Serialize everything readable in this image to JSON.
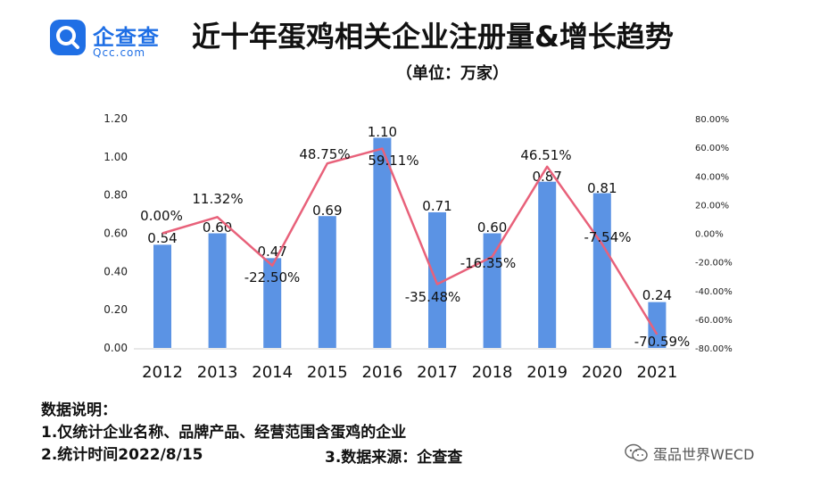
{
  "logo": {
    "name": "企查查",
    "url": "Qcc.com"
  },
  "header": {
    "title": "近十年蛋鸡相关企业注册量&增长趋势",
    "subtitle": "（单位：万家）"
  },
  "colors": {
    "bar": "#5b93e4",
    "line": "#e8617a",
    "brand": "#1f6fe5"
  },
  "chart_data": {
    "type": "bar",
    "categories": [
      "2012",
      "2013",
      "2014",
      "2015",
      "2016",
      "2017",
      "2018",
      "2019",
      "2020",
      "2021"
    ],
    "series": [
      {
        "type": "bar",
        "axis": "left",
        "values": [
          0.54,
          0.6,
          0.47,
          0.69,
          1.1,
          0.71,
          0.6,
          0.87,
          0.81,
          0.24
        ],
        "labels": [
          "0.54",
          "0.60",
          "0.47",
          "0.69",
          "1.10",
          "0.71",
          "0.60",
          "0.87",
          "0.81",
          "0.24"
        ]
      },
      {
        "type": "line",
        "axis": "right",
        "values": [
          0.0,
          11.32,
          -22.5,
          48.75,
          59.11,
          -35.48,
          -16.35,
          46.51,
          -7.54,
          -70.59
        ],
        "labels": [
          "0.00%",
          "11.32%",
          "-22.50%",
          "48.75%",
          "59.11%",
          "-35.48%",
          "-16.35%",
          "46.51%",
          "-7.54%",
          "-70.59%"
        ]
      }
    ],
    "y_left": {
      "range": [
        0,
        1.2
      ],
      "ticks": [
        "0.00",
        "0.20",
        "0.40",
        "0.60",
        "0.80",
        "1.00",
        "1.20"
      ]
    },
    "y_right": {
      "range": [
        -80,
        80
      ],
      "ticks": [
        "-80.00%",
        "-60.00%",
        "-40.00%",
        "-20.00%",
        "0.00%",
        "20.00%",
        "40.00%",
        "60.00%",
        "80.00%"
      ]
    },
    "grid": false,
    "legend": "none"
  },
  "notes": {
    "heading": "数据说明：",
    "line1": "1.仅统计企业名称、品牌产品、经营范围含蛋鸡的企业",
    "line2": "2.统计时间2022/8/15",
    "line3": "3.数据来源：企查查"
  },
  "watermark": {
    "icon": "wechat-icon",
    "text": "蛋品世界WECD"
  }
}
